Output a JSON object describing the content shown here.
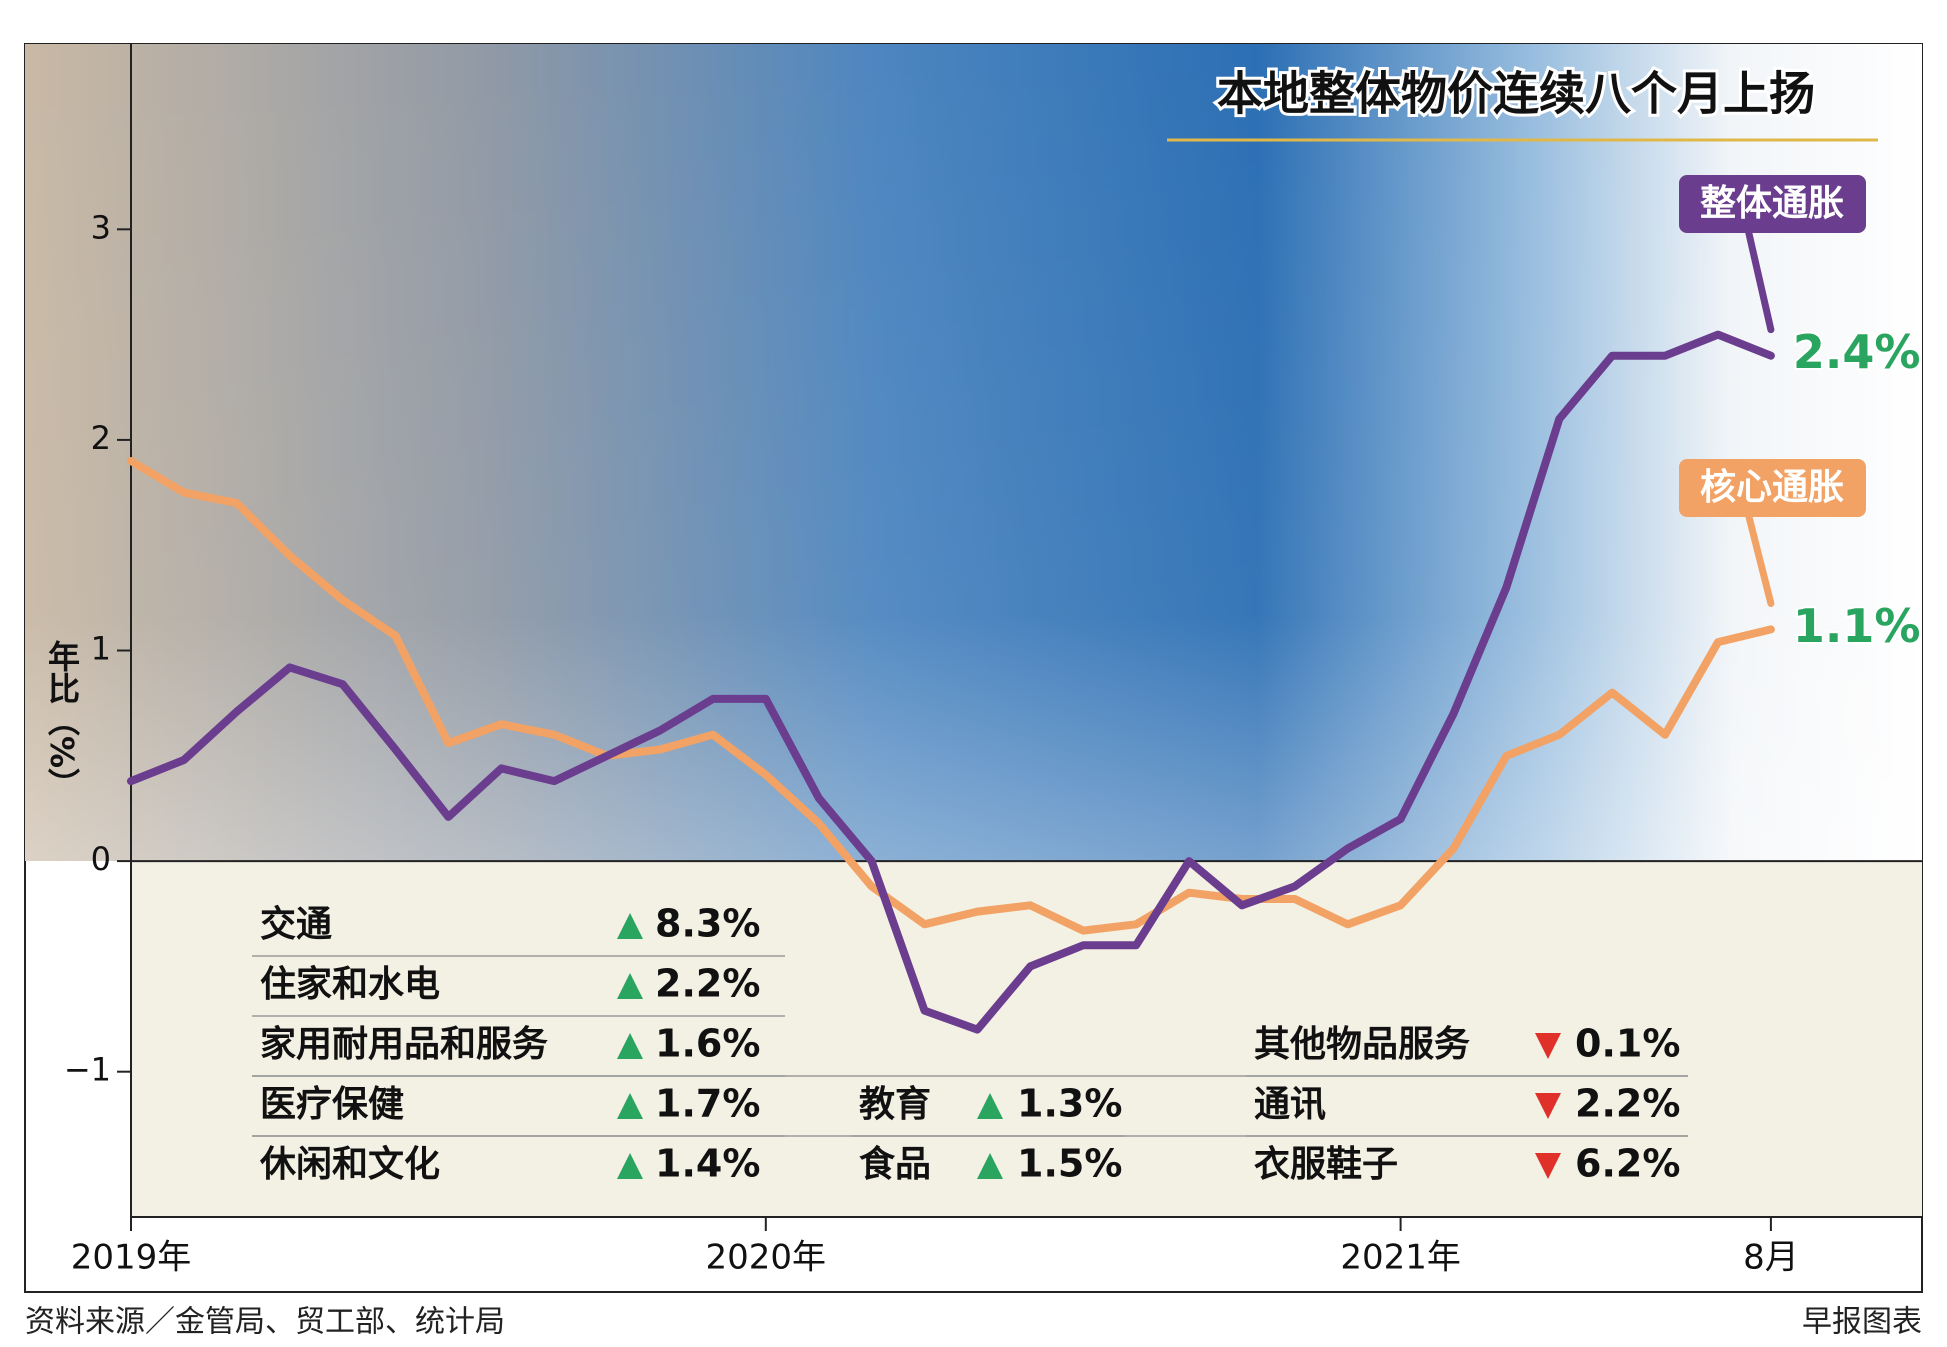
{
  "chart_data": {
    "type": "line",
    "title": "本地整体物价连续八个月上扬",
    "y_label": "年比（%）",
    "categories": [
      "2019年",
      null,
      null,
      null,
      null,
      null,
      null,
      null,
      null,
      null,
      null,
      null,
      "2020年",
      null,
      null,
      null,
      null,
      null,
      null,
      null,
      null,
      null,
      null,
      null,
      "2021年",
      null,
      null,
      null,
      null,
      null,
      null,
      "8月"
    ],
    "ylim": [
      -1.69,
      3.88
    ],
    "yticks": [
      {
        "value": -1,
        "label": "−1"
      },
      0,
      1,
      2,
      3
    ],
    "series": [
      {
        "name": "整体通胀",
        "color": "#6b3d8e",
        "values": [
          0.38,
          0.48,
          0.71,
          0.92,
          0.84,
          0.53,
          0.21,
          0.44,
          0.38,
          0.5,
          0.62,
          0.77,
          0.77,
          0.3,
          0,
          -0.71,
          -0.8,
          -0.5,
          -0.4,
          -0.4,
          0,
          -0.21,
          -0.12,
          0.06,
          0.2,
          0.7,
          1.3,
          2.1,
          2.4,
          2.4,
          2.5,
          2.4
        ],
        "value_labels": [
          null,
          null,
          null,
          null,
          null,
          null,
          null,
          null,
          null,
          null,
          null,
          null,
          null,
          null,
          null,
          null,
          null,
          null,
          null,
          null,
          null,
          null,
          null,
          null,
          null,
          null,
          null,
          null,
          null,
          null,
          null,
          "2.4%"
        ]
      },
      {
        "name": "核心通胀",
        "color": "#f2a264",
        "values": [
          1.9,
          1.75,
          1.7,
          1.45,
          1.24,
          1.07,
          0.56,
          0.65,
          0.6,
          0.5,
          0.53,
          0.6,
          0.41,
          0.18,
          -0.12,
          -0.3,
          -0.24,
          -0.21,
          -0.33,
          -0.3,
          -0.15,
          -0.18,
          -0.18,
          -0.3,
          -0.21,
          0.06,
          0.5,
          0.6,
          0.8,
          0.6,
          1.04,
          1.1
        ],
        "value_labels": [
          null,
          null,
          null,
          null,
          null,
          null,
          null,
          null,
          null,
          null,
          null,
          null,
          null,
          null,
          null,
          null,
          null,
          null,
          null,
          null,
          null,
          null,
          null,
          null,
          null,
          null,
          null,
          null,
          null,
          null,
          null,
          "1.1%"
        ]
      }
    ],
    "breakdown": [
      [
        {
          "name": "交通",
          "change": "8.3%",
          "trend": "up"
        },
        {
          "name": "住家和水电",
          "change": "2.2%",
          "trend": "up"
        },
        {
          "name": "家用耐用品和服务",
          "change": "1.6%",
          "trend": "up"
        },
        {
          "name": "医疗保健",
          "change": "1.7%",
          "trend": "up"
        },
        {
          "name": "休闲和文化",
          "change": "1.4%",
          "trend": "up"
        }
      ],
      [
        {
          "name": "教育",
          "change": "1.3%",
          "trend": "up"
        },
        {
          "name": "食品",
          "change": "1.5%",
          "trend": "up"
        }
      ],
      [
        {
          "name": "其他物品服务",
          "change": "0.1%",
          "trend": "down"
        },
        {
          "name": "通讯",
          "change": "2.2%",
          "trend": "down"
        },
        {
          "name": "衣服鞋子",
          "change": "6.2%",
          "trend": "down"
        }
      ]
    ],
    "source": "资料来源／金管局、贸工部、统计局",
    "credit": "早报图表"
  }
}
